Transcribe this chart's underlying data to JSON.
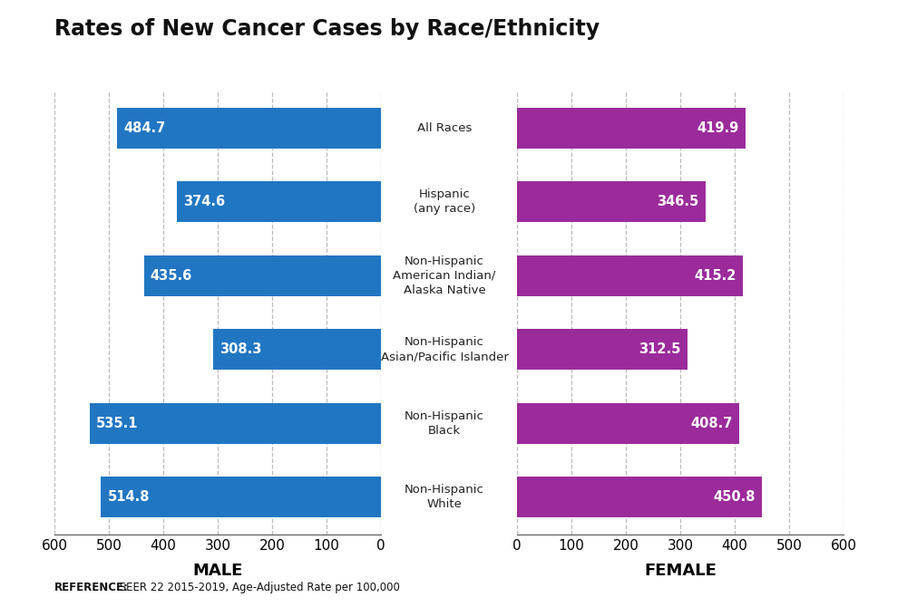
{
  "title": "Rates of New Cancer Cases by Race/Ethnicity",
  "categories": [
    "All Races",
    "Hispanic\n(any race)",
    "Non-Hispanic\nAmerican Indian/\nAlaska Native",
    "Non-Hispanic\nAsian/Pacific Islander",
    "Non-Hispanic\nBlack",
    "Non-Hispanic\nWhite"
  ],
  "male_values": [
    484.7,
    374.6,
    435.6,
    308.3,
    535.1,
    514.8
  ],
  "female_values": [
    419.9,
    346.5,
    415.2,
    312.5,
    408.7,
    450.8
  ],
  "male_color": "#2176C2",
  "female_color": "#9B2B9B",
  "male_label": "MALE",
  "female_label": "FEMALE",
  "xlim": [
    0,
    600
  ],
  "x_ticks": [
    0,
    100,
    200,
    300,
    400,
    500,
    600
  ],
  "reference_bold": "REFERENCE:",
  "reference_rest": " SEER 22 2015-2019, Age-Adjusted Rate per 100,000",
  "bar_height": 0.55,
  "background_color": "#ffffff",
  "grid_color": "#bbbbbb",
  "title_fontsize": 17,
  "axis_label_fontsize": 13,
  "tick_fontsize": 11,
  "value_fontsize": 10.5,
  "ref_fontsize": 8.5,
  "cat_fontsize": 9.5
}
